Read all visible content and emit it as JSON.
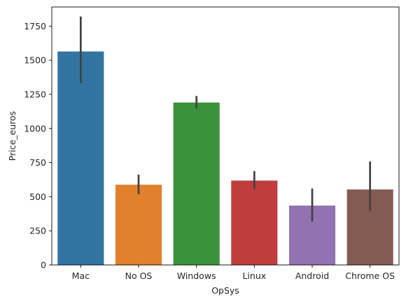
{
  "chart_data": {
    "type": "bar",
    "title": "",
    "xlabel": "OpSys",
    "ylabel": "Price_euros",
    "categories": [
      "Mac",
      "No OS",
      "Windows",
      "Linux",
      "Android",
      "Chrome OS"
    ],
    "values": [
      1564,
      588,
      1190,
      618,
      435,
      553
    ],
    "error_low": [
      1332,
      518,
      1145,
      555,
      318,
      398
    ],
    "error_high": [
      1820,
      662,
      1238,
      688,
      560,
      758
    ],
    "colors": [
      "#3274a1",
      "#e1812c",
      "#3a923a",
      "#c03d3e",
      "#9372b2",
      "#845b53"
    ],
    "ylim": [
      0,
      1890
    ],
    "yticks": [
      0,
      250,
      500,
      750,
      1000,
      1250,
      1500,
      1750
    ],
    "grid": false,
    "legend": "none"
  }
}
